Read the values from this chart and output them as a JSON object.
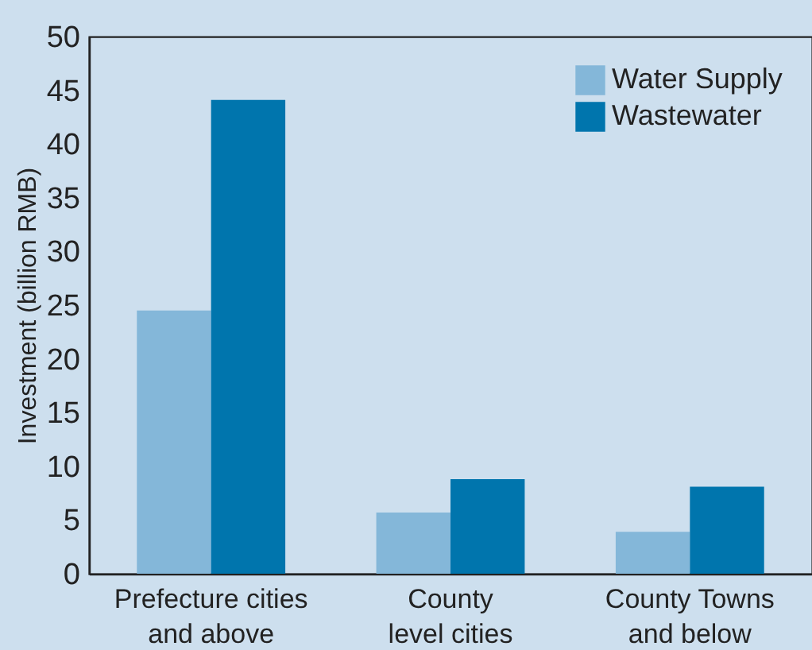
{
  "chart_data": {
    "type": "bar",
    "ylabel": "Investment (billion RMB)",
    "categories": [
      "Prefecture cities\nand above",
      "County\nlevel cities",
      "County Towns\nand below"
    ],
    "series": [
      {
        "name": "Water Supply",
        "color": "#84b7d9",
        "values": [
          24.5,
          5.7,
          3.9
        ]
      },
      {
        "name": "Wastewater",
        "color": "#0075ad",
        "values": [
          44.1,
          8.8,
          8.1
        ]
      }
    ],
    "ylim": [
      0,
      50
    ],
    "yticks": [
      0,
      5,
      10,
      15,
      20,
      25,
      30,
      35,
      40,
      45,
      50
    ],
    "grid": false,
    "legend": "top right"
  }
}
